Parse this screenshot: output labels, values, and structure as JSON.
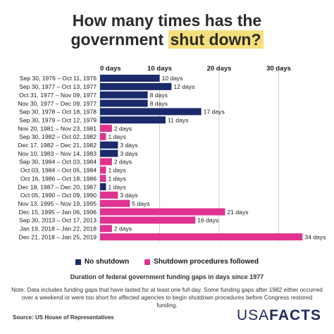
{
  "title": {
    "line1": "How many times has the",
    "line2_prefix": "government ",
    "line2_highlight": "shut down?"
  },
  "colors": {
    "no_shutdown": "#1b2a6b",
    "shutdown": "#e0338f",
    "highlight": "#f5df7b",
    "grid": "#cfcfcf"
  },
  "chart_data": {
    "type": "bar",
    "orientation": "horizontal",
    "xlim": [
      0,
      34
    ],
    "x_ticks": [
      0,
      10,
      20,
      30
    ],
    "x_tick_labels": [
      "0 days",
      "10 days",
      "20 days",
      "30 days"
    ],
    "value_suffix": " days",
    "categories": [
      "Sep 30, 1976 – Oct 11, 1976",
      "Sep 30, 1977 – Oct 13, 1977",
      "Oct 31, 1977 – Nov 09, 1977",
      "Nov 30, 1977 – Dec 09, 1977",
      "Sep 30, 1978 – Oct 18, 1978",
      "Sep 30, 1979 – Oct 12, 1979",
      "Nov 20, 1981 – Nov 23, 1981",
      "Sep 30, 1982 – Oct 02, 1982",
      "Dec 17, 1982 – Dec 21, 1982",
      "Nov 10, 1983 – Nov 14, 1983",
      "Sep 30, 1984 – Oct 03, 1984",
      "Oct 03, 1984 – Oct 05, 1984",
      "Oct 16, 1986 – Oct 18, 1986",
      "Dec 18, 1987 – Dec 20, 1987",
      "Oct 05, 1990 – Oct 09, 1990",
      "Nov 13, 1995 – Nov 19, 1995",
      "Dec 15, 1995 – Jan 06, 1996",
      "Sep 30, 2013 – Oct 17, 2013",
      "Jan 19, 2018 – Jan 22, 2018",
      "Dec 21, 2018 – Jan 25, 2019"
    ],
    "values": [
      10,
      12,
      8,
      8,
      17,
      11,
      2,
      1,
      3,
      3,
      2,
      1,
      1,
      1,
      3,
      5,
      21,
      16,
      2,
      34
    ],
    "value_labels": [
      "10 days",
      "12 days",
      "8 days",
      "8 days",
      "17 days",
      "11 days",
      "2 days",
      "1 days",
      "3 days",
      "3 days",
      "2 days",
      "1 days",
      "1 days",
      "1 days",
      "3 days",
      "5 days",
      "21 days",
      "16 days",
      "2 days",
      "34 days"
    ],
    "types": [
      "no_shutdown",
      "no_shutdown",
      "no_shutdown",
      "no_shutdown",
      "no_shutdown",
      "no_shutdown",
      "shutdown",
      "shutdown",
      "no_shutdown",
      "no_shutdown",
      "shutdown",
      "shutdown",
      "shutdown",
      "no_shutdown",
      "shutdown",
      "shutdown",
      "shutdown",
      "shutdown",
      "shutdown",
      "shutdown"
    ],
    "legend": [
      {
        "key": "no_shutdown",
        "label": "No shutdown"
      },
      {
        "key": "shutdown",
        "label": "Shutdown procedures followed"
      }
    ],
    "grid": true
  },
  "caption": "Duration of federal government funding gaps in days since 1977",
  "note": "Note: Data includes funding gaps that have lasted for at least one full day. Some funding gaps after 1982 either occurred over a weekend or were too short for affected agencies to begin shutdown procedures before Congress restored funding.",
  "source": "Source: US House of Representatives",
  "logo": {
    "usa": "USA",
    "facts": "FACTS"
  }
}
